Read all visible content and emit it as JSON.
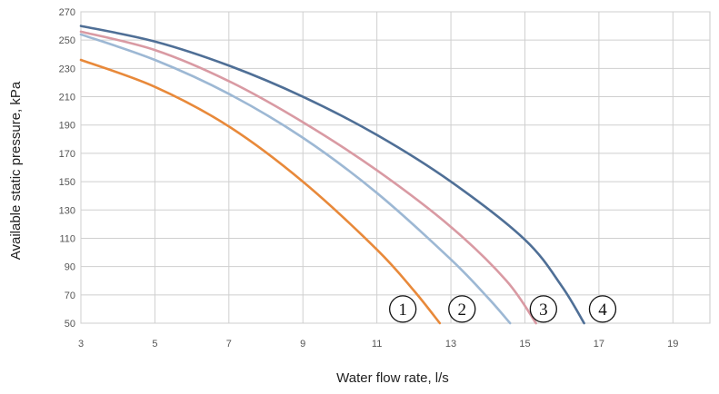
{
  "chart_data": {
    "type": "line",
    "xlabel": "Water flow rate, l/s",
    "ylabel": "Available static pressure, kPa",
    "xlim": [
      3,
      20
    ],
    "ylim": [
      50,
      270
    ],
    "x_ticks": [
      3,
      5,
      7,
      9,
      11,
      13,
      15,
      17,
      19
    ],
    "x_tick_labels": [
      "3",
      "5",
      "7",
      "9",
      "11",
      "13",
      "15",
      "17",
      "19"
    ],
    "y_ticks": [
      50,
      70,
      90,
      110,
      130,
      150,
      170,
      190,
      210,
      230,
      250,
      270
    ],
    "grid": true,
    "series": [
      {
        "name": "1",
        "color": "#e8893a",
        "points": [
          [
            3,
            236
          ],
          [
            5,
            217
          ],
          [
            7,
            189
          ],
          [
            9,
            150
          ],
          [
            11,
            102
          ],
          [
            12,
            73
          ],
          [
            12.7,
            50
          ]
        ],
        "marker_x": 11.7
      },
      {
        "name": "2",
        "color": "#9db8d4",
        "points": [
          [
            3,
            254
          ],
          [
            5,
            236
          ],
          [
            7,
            212
          ],
          [
            9,
            181
          ],
          [
            11,
            142
          ],
          [
            13,
            95
          ],
          [
            14,
            68
          ],
          [
            14.6,
            50
          ]
        ],
        "marker_x": 13.3
      },
      {
        "name": "3",
        "color": "#d99aa3",
        "points": [
          [
            3,
            256
          ],
          [
            5,
            243
          ],
          [
            7,
            221
          ],
          [
            9,
            192
          ],
          [
            11,
            158
          ],
          [
            13,
            118
          ],
          [
            14.5,
            80
          ],
          [
            15.3,
            50
          ]
        ],
        "marker_x": 15.5
      },
      {
        "name": "4",
        "color": "#4f6f96",
        "points": [
          [
            3,
            260
          ],
          [
            5,
            249
          ],
          [
            7,
            232
          ],
          [
            9,
            210
          ],
          [
            11,
            183
          ],
          [
            13,
            150
          ],
          [
            15,
            109
          ],
          [
            16,
            76
          ],
          [
            16.6,
            50
          ]
        ],
        "marker_x": 17.1
      }
    ]
  }
}
